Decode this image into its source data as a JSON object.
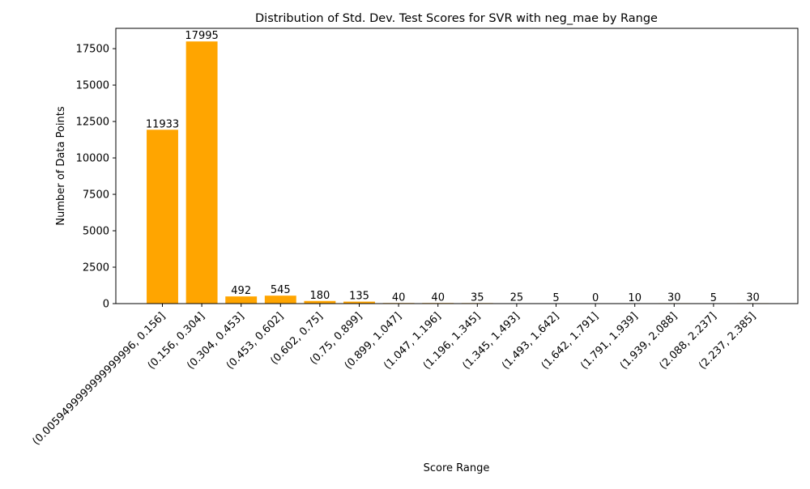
{
  "chart_data": {
    "type": "bar",
    "title": "Distribution of Std. Dev. Test Scores for SVR with neg_mae by Range",
    "xlabel": "Score Range",
    "ylabel": "Number of Data Points",
    "categories": [
      "(0.0059499999999999996, 0.156]",
      "(0.156, 0.304]",
      "(0.304, 0.453]",
      "(0.453, 0.602]",
      "(0.602, 0.75]",
      "(0.75, 0.899]",
      "(0.899, 1.047]",
      "(1.047, 1.196]",
      "(1.196, 1.345]",
      "(1.345, 1.493]",
      "(1.493, 1.642]",
      "(1.642, 1.791]",
      "(1.791, 1.939]",
      "(1.939, 2.088]",
      "(2.088, 2.237]",
      "(2.237, 2.385]"
    ],
    "values": [
      11933,
      17995,
      492,
      545,
      180,
      135,
      40,
      40,
      35,
      25,
      5,
      0,
      10,
      30,
      5,
      30
    ],
    "data_labels": [
      "11933",
      "17995",
      "492",
      "545",
      "180",
      "135",
      "40",
      "40",
      "35",
      "25",
      "5",
      "0",
      "10",
      "30",
      "5",
      "30"
    ],
    "ylim": [
      0,
      18894.75
    ],
    "yticks": [
      0,
      2500,
      5000,
      7500,
      10000,
      12500,
      15000,
      17500
    ],
    "ytick_labels": [
      "0",
      "2500",
      "5000",
      "7500",
      "10000",
      "12500",
      "15000",
      "17500"
    ],
    "bar_color": "#ffa500",
    "grid": false,
    "legend": false
  }
}
